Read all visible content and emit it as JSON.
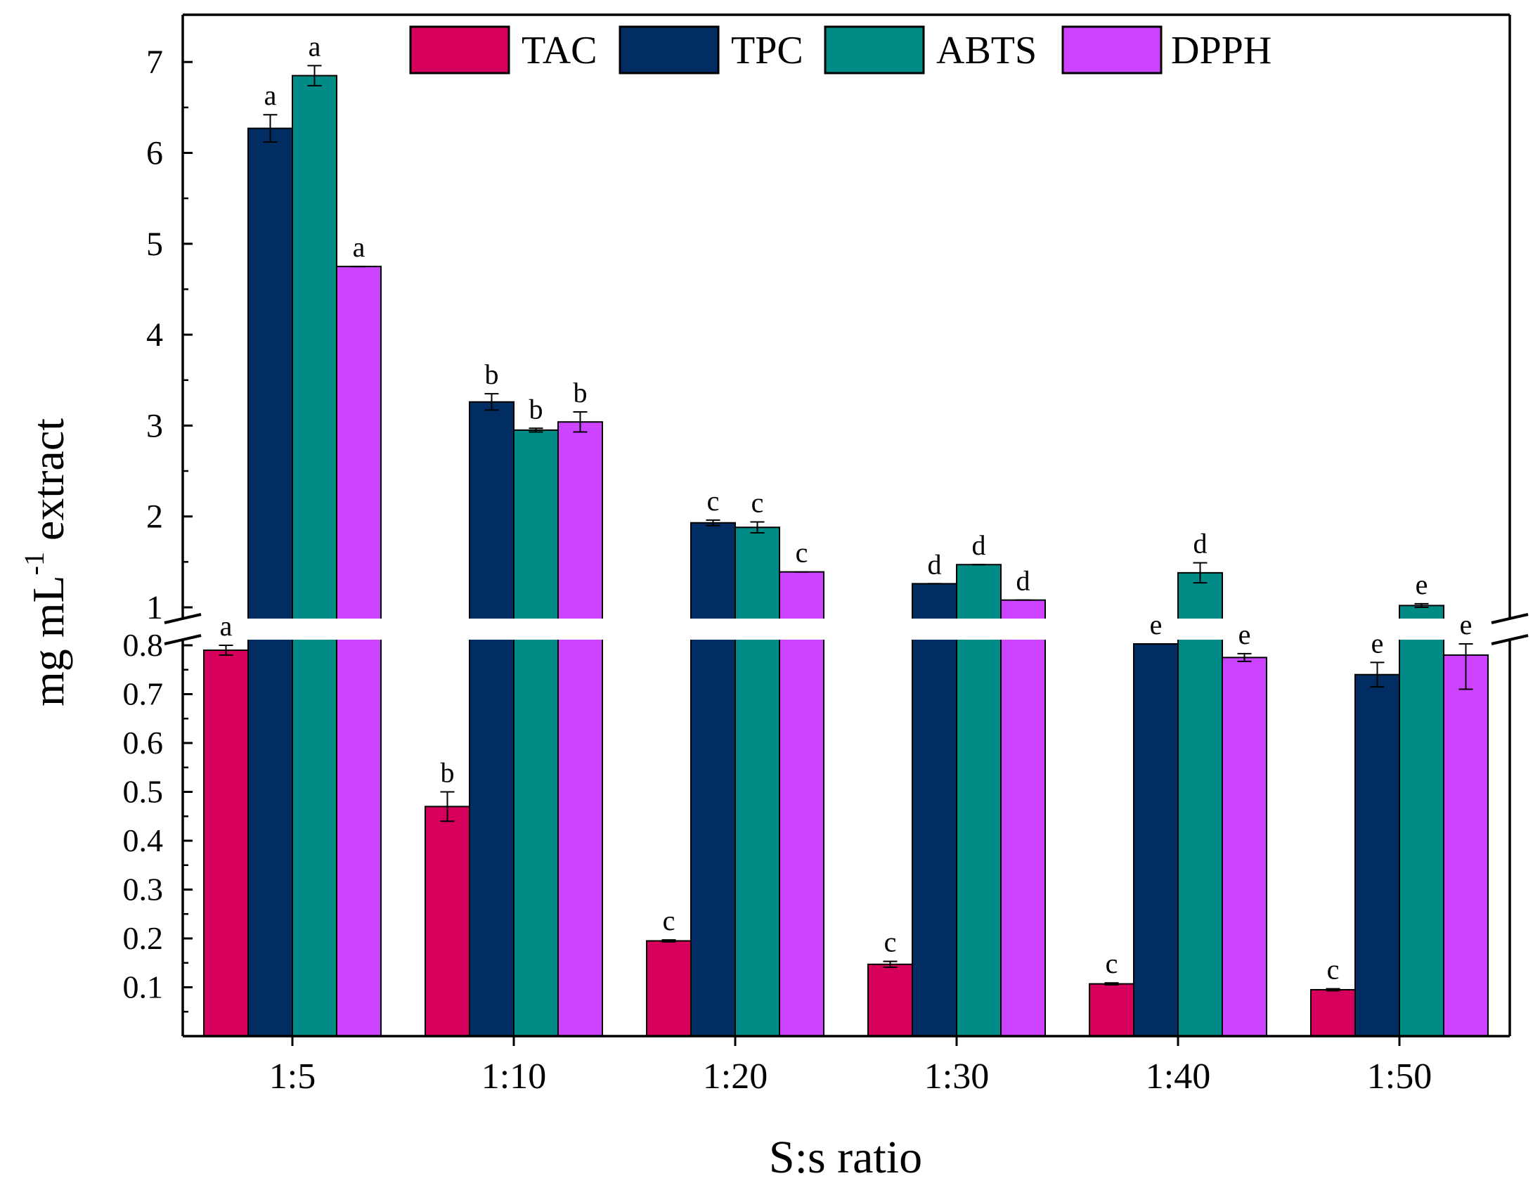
{
  "chart_data": {
    "type": "bar",
    "title": "",
    "xlabel": "S:s ratio",
    "ylabel_main": "mg mL",
    "ylabel_sup": "-1",
    "ylabel_tail": " extract",
    "categories": [
      "1:5",
      "1:10",
      "1:20",
      "1:30",
      "1:40",
      "1:50"
    ],
    "axis_break": {
      "lower_range": [
        0,
        0.8
      ],
      "upper_range": [
        0.8,
        7.3
      ]
    },
    "y_ticks_lower": [
      "0.1",
      "0.2",
      "0.3",
      "0.4",
      "0.5",
      "0.6",
      "0.7",
      "0.8"
    ],
    "y_ticks_upper": [
      "1",
      "2",
      "3",
      "4",
      "5",
      "6",
      "7"
    ],
    "legend_position": "top",
    "series": [
      {
        "name": "TAC",
        "color": "#D6005C",
        "values": [
          0.79,
          0.47,
          0.195,
          0.147,
          0.107,
          0.095
        ],
        "errors": [
          0.01,
          0.03,
          0.002,
          0.006,
          0.002,
          0.002
        ],
        "letters": [
          "a",
          "b",
          "c",
          "c",
          "c",
          "c"
        ]
      },
      {
        "name": "TPC",
        "color": "#022D62",
        "values": [
          6.27,
          3.26,
          1.93,
          1.26,
          0.93,
          0.74
        ],
        "errors": [
          0.15,
          0.09,
          0.03,
          0.0,
          0.0,
          0.025
        ],
        "letters": [
          "a",
          "b",
          "c",
          "d",
          "e",
          "e"
        ]
      },
      {
        "name": "ABTS",
        "color": "#008B86",
        "values": [
          6.85,
          2.95,
          1.88,
          1.47,
          1.38,
          1.02
        ],
        "errors": [
          0.11,
          0.02,
          0.06,
          0.0,
          0.11,
          0.02
        ],
        "letters": [
          "a",
          "b",
          "c",
          "d",
          "d",
          "e"
        ]
      },
      {
        "name": "DPPH",
        "color": "#CC44FF",
        "values": [
          4.75,
          3.04,
          1.39,
          1.08,
          0.775,
          0.78
        ],
        "errors": [
          0.0,
          0.11,
          0.0,
          0.0,
          0.008,
          0.07
        ],
        "letters": [
          "a",
          "b",
          "c",
          "d",
          "e",
          "e"
        ]
      }
    ]
  }
}
